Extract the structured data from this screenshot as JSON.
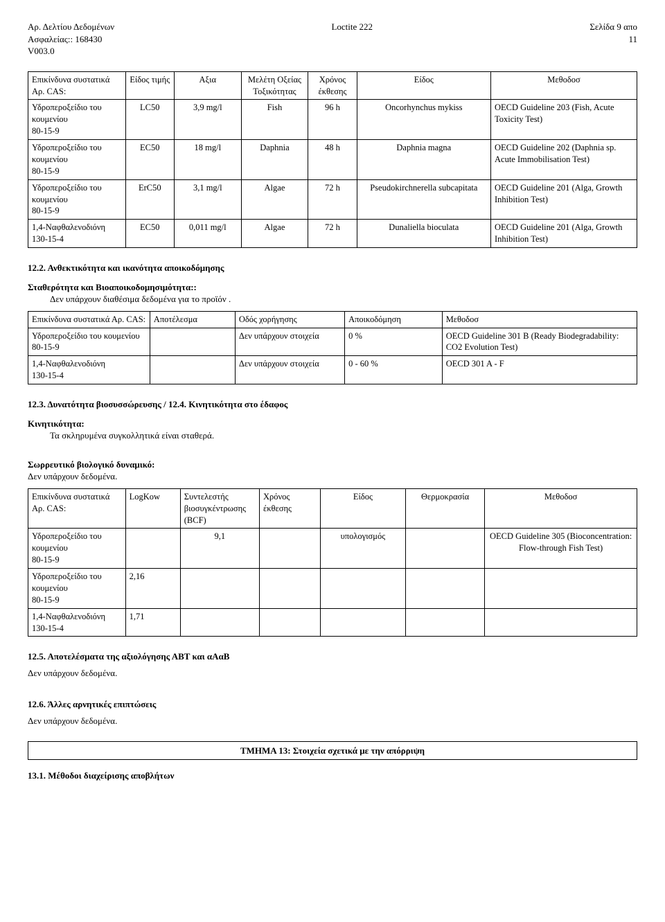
{
  "header": {
    "left1": "Αρ. Δελτίου Δεδομένων",
    "left2": "Ασφαλείας:: 168430",
    "left3": "V003.0",
    "center": "Loctite 222",
    "right1": "Σελίδα 9 απο",
    "right2": "11"
  },
  "table1": {
    "head": {
      "c1": "Επικίνδυνα συστατικά Αρ. CAS:",
      "c2": "Είδος τιμής",
      "c3": "Αξια",
      "c4": "Μελέτη Οξείας Τοξικότητας",
      "c5": "Χρόνος έκθεσης",
      "c6": "Είδος",
      "c7": "Μεθοδοσ"
    },
    "rows": [
      {
        "c1": "Υδροπεροξείδιο του κουμενίου\n80-15-9",
        "c2": "LC50",
        "c3": "3,9 mg/l",
        "c4": "Fish",
        "c5": "96 h",
        "c6": "Oncorhynchus mykiss",
        "c7": "OECD Guideline 203 (Fish, Acute Toxicity Test)"
      },
      {
        "c1": "Υδροπεροξείδιο του κουμενίου\n80-15-9",
        "c2": "EC50",
        "c3": "18 mg/l",
        "c4": "Daphnia",
        "c5": "48 h",
        "c6": "Daphnia magna",
        "c7": "OECD Guideline 202 (Daphnia sp. Acute Immobilisation Test)"
      },
      {
        "c1": "Υδροπεροξείδιο του κουμενίου\n80-15-9",
        "c2": "ErC50",
        "c3": "3,1 mg/l",
        "c4": "Algae",
        "c5": "72 h",
        "c6": "Pseudokirchnerella subcapitata",
        "c7": "OECD Guideline 201 (Alga, Growth Inhibition Test)"
      },
      {
        "c1": "1,4-Ναφθαλενοδιόνη\n130-15-4",
        "c2": "EC50",
        "c3": "0,011 mg/l",
        "c4": "Algae",
        "c5": "72 h",
        "c6": "Dunaliella bioculata",
        "c7": "OECD Guideline 201 (Alga, Growth Inhibition Test)"
      }
    ]
  },
  "s122": {
    "title": "12.2. Ανθεκτικότητα και ικανότητα αποικοδόμησης",
    "sub": "Σταθερότητα και Βιοαποικοδομησιμότητα::",
    "text": "Δεν υπάρχουν διαθέσιμα δεδομένα για το προϊόν ."
  },
  "table2": {
    "head": {
      "c1": "Επικίνδυνα συστατικά Αρ. CAS:",
      "c2": "Αποτέλεσμα",
      "c3": "Οδός χορήγησης",
      "c4": "Αποικοδόμηση",
      "c5": "Μεθοδοσ"
    },
    "rows": [
      {
        "c1": "Υδροπεροξείδιο του κουμενίου\n80-15-9",
        "c2": "",
        "c3": "Δεν υπάρχουν στοιχεία",
        "c4": "0 %",
        "c5": "OECD Guideline 301 B (Ready Biodegradability: CO2 Evolution Test)"
      },
      {
        "c1": "1,4-Ναφθαλενοδιόνη\n130-15-4",
        "c2": "",
        "c3": "Δεν υπάρχουν στοιχεία",
        "c4": "0 - 60 %",
        "c5": "OECD 301 A - F"
      }
    ]
  },
  "s123": {
    "title": "12.3. Δυνατότητα βιοσυσσώρευσης / 12.4. Κινητικότητα στο έδαφος",
    "sub1": "Κινητικότητα:",
    "text1": "Τα σκληρυμένα συγκολλητικά είναι σταθερά.",
    "sub2": "Σωρρευτικό βιολογικό δυναμικό:",
    "text2": "Δεν υπάρχουν δεδομένα."
  },
  "table3": {
    "head": {
      "c1": "Επικίνδυνα συστατικά Αρ. CAS:",
      "c2": "LogKow",
      "c3": "Συντελεστής βιοσυγκέντρωσης (BCF)",
      "c4": "Χρόνος έκθεσης",
      "c5": "Είδος",
      "c6": "Θερμοκρασία",
      "c7": "Μεθοδοσ"
    },
    "rows": [
      {
        "c1": "Υδροπεροξείδιο του κουμενίου\n80-15-9",
        "c2": "",
        "c3": "9,1",
        "c4": "",
        "c5": "υπολογισμός",
        "c6": "",
        "c7": "OECD Guideline 305 (Bioconcentration: Flow-through Fish Test)"
      },
      {
        "c1": "Υδροπεροξείδιο του κουμενίου\n80-15-9",
        "c2": "2,16",
        "c3": "",
        "c4": "",
        "c5": "",
        "c6": "",
        "c7": ""
      },
      {
        "c1": "1,4-Ναφθαλενοδιόνη\n130-15-4",
        "c2": "1,71",
        "c3": "",
        "c4": "",
        "c5": "",
        "c6": "",
        "c7": ""
      }
    ]
  },
  "s125": {
    "title": "12.5. Αποτελέσματα της αξιολόγησης ΑΒΤ και αΑαΒ",
    "text": "Δεν υπάρχουν δεδομένα."
  },
  "s126": {
    "title": "12.6. Άλλες αρνητικές επιπτώσεις",
    "text": "Δεν υπάρχουν δεδομένα."
  },
  "section13": {
    "bar": "ΤΜΗΜΑ 13: Στοιχεία σχετικά με την απόρριψη",
    "s131": "13.1. Μέθοδοι διαχείρισης αποβλήτων"
  }
}
